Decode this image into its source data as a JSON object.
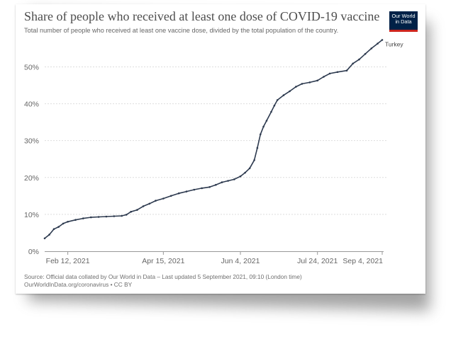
{
  "header": {
    "title": "Share of people who received at least one dose of COVID-19 vaccine",
    "subtitle": "Total number of people who received at least one vaccine dose, divided by the total population of the country."
  },
  "logo": {
    "line1": "Our World",
    "line2": "in Data",
    "bg_color": "#002147",
    "accent_color": "#ce261e"
  },
  "footer": {
    "source": "Source: Official data collated by Our World in Data – Last updated 5 September 2021, 09:10 (London time)",
    "license": "OurWorldInData.org/coronavirus • CC BY"
  },
  "chart_data": {
    "type": "line",
    "title": "Share of people who received at least one dose of COVID-19 vaccine",
    "subtitle": "Total number of people who received at least one vaccine dose, divided by the total population of the country.",
    "xlabel": "",
    "ylabel": "",
    "xlim": [
      "2021-01-28",
      "2021-09-04"
    ],
    "ylim": [
      0,
      57
    ],
    "yticks": [
      0,
      10,
      20,
      30,
      40,
      50
    ],
    "ytick_labels": [
      "0%",
      "10%",
      "20%",
      "30%",
      "40%",
      "50%"
    ],
    "xticks": [
      "2021-02-12",
      "2021-04-15",
      "2021-06-04",
      "2021-07-24",
      "2021-09-04"
    ],
    "xtick_labels": [
      "Feb 12, 2021",
      "Apr 15, 2021",
      "Jun 4, 2021",
      "Jul 24, 2021",
      "Sep 4, 2021"
    ],
    "grid": "horizontal dotted",
    "line_color": "#2d3a4f",
    "series": [
      {
        "name": "Turkey",
        "points": [
          [
            "2021-01-28",
            3.5
          ],
          [
            "2021-01-31",
            4.5
          ],
          [
            "2021-02-03",
            6.0
          ],
          [
            "2021-02-06",
            6.6
          ],
          [
            "2021-02-09",
            7.5
          ],
          [
            "2021-02-12",
            8.0
          ],
          [
            "2021-02-17",
            8.5
          ],
          [
            "2021-02-22",
            8.9
          ],
          [
            "2021-02-27",
            9.2
          ],
          [
            "2021-03-04",
            9.3
          ],
          [
            "2021-03-09",
            9.4
          ],
          [
            "2021-03-14",
            9.5
          ],
          [
            "2021-03-19",
            9.6
          ],
          [
            "2021-03-22",
            9.9
          ],
          [
            "2021-03-25",
            10.7
          ],
          [
            "2021-03-29",
            11.2
          ],
          [
            "2021-04-02",
            12.2
          ],
          [
            "2021-04-06",
            12.9
          ],
          [
            "2021-04-10",
            13.7
          ],
          [
            "2021-04-15",
            14.3
          ],
          [
            "2021-04-20",
            15.0
          ],
          [
            "2021-04-25",
            15.7
          ],
          [
            "2021-04-30",
            16.2
          ],
          [
            "2021-05-05",
            16.7
          ],
          [
            "2021-05-10",
            17.1
          ],
          [
            "2021-05-15",
            17.4
          ],
          [
            "2021-05-19",
            18.0
          ],
          [
            "2021-05-23",
            18.7
          ],
          [
            "2021-05-27",
            19.1
          ],
          [
            "2021-05-31",
            19.5
          ],
          [
            "2021-06-04",
            20.3
          ],
          [
            "2021-06-07",
            21.3
          ],
          [
            "2021-06-10",
            22.5
          ],
          [
            "2021-06-13",
            24.7
          ],
          [
            "2021-06-15",
            28.0
          ],
          [
            "2021-06-17",
            31.7
          ],
          [
            "2021-06-19",
            33.8
          ],
          [
            "2021-06-21",
            35.4
          ],
          [
            "2021-06-24",
            37.8
          ],
          [
            "2021-06-26",
            39.5
          ],
          [
            "2021-06-28",
            41.0
          ],
          [
            "2021-07-02",
            42.3
          ],
          [
            "2021-07-06",
            43.4
          ],
          [
            "2021-07-10",
            44.6
          ],
          [
            "2021-07-14",
            45.4
          ],
          [
            "2021-07-19",
            45.8
          ],
          [
            "2021-07-24",
            46.3
          ],
          [
            "2021-07-28",
            47.3
          ],
          [
            "2021-08-01",
            48.2
          ],
          [
            "2021-08-06",
            48.6
          ],
          [
            "2021-08-12",
            49.0
          ],
          [
            "2021-08-16",
            50.9
          ],
          [
            "2021-08-20",
            52.0
          ],
          [
            "2021-08-24",
            53.5
          ],
          [
            "2021-08-28",
            55.0
          ],
          [
            "2021-09-01",
            56.3
          ],
          [
            "2021-09-04",
            57.3
          ]
        ]
      }
    ],
    "legend": "series label at line end, right"
  }
}
